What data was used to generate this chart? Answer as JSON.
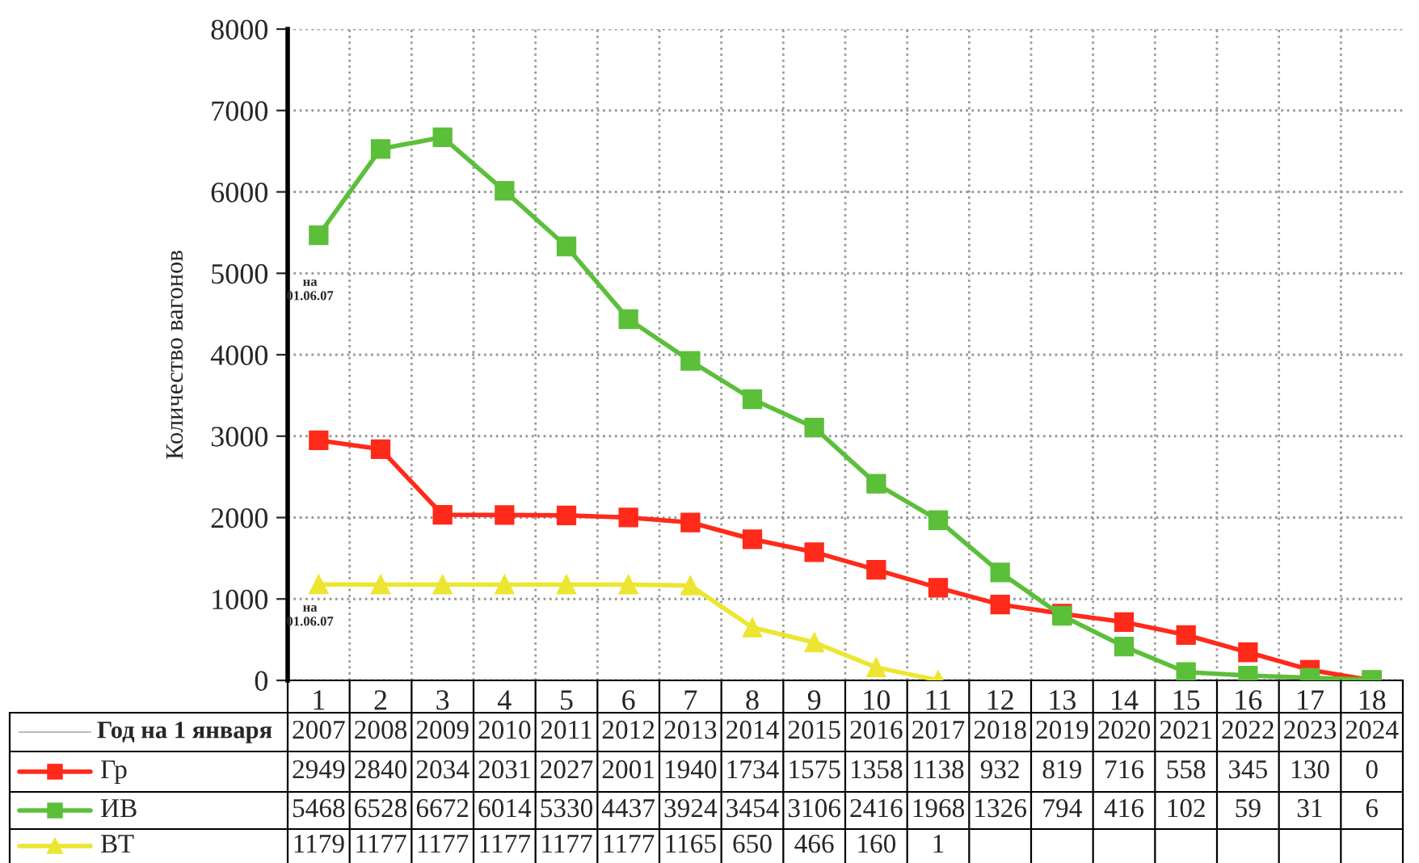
{
  "chart_data": {
    "type": "line",
    "ylabel": "Количество вагонов",
    "categories": [
      "1",
      "2",
      "3",
      "4",
      "5",
      "6",
      "7",
      "8",
      "9",
      "10",
      "11",
      "12",
      "13",
      "14",
      "15",
      "16",
      "17",
      "18"
    ],
    "series": [
      {
        "name": "Гр",
        "color": "#ff2a1a",
        "marker": "square",
        "values": [
          2949,
          2840,
          2034,
          2031,
          2027,
          2001,
          1940,
          1734,
          1575,
          1358,
          1138,
          932,
          819,
          716,
          558,
          345,
          130,
          0
        ]
      },
      {
        "name": "ИВ",
        "color": "#5cbf3a",
        "marker": "square",
        "values": [
          5468,
          6528,
          6672,
          6014,
          5330,
          4437,
          3924,
          3454,
          3106,
          2416,
          1968,
          1326,
          794,
          416,
          102,
          59,
          31,
          6
        ]
      },
      {
        "name": "ВТ",
        "color": "#ece632",
        "marker": "triangle",
        "values": [
          1179,
          1177,
          1177,
          1177,
          1177,
          1177,
          1165,
          650,
          466,
          160,
          1,
          null,
          null,
          null,
          null,
          null,
          null,
          null
        ]
      }
    ],
    "ylim": [
      0,
      8000
    ],
    "yticks": [
      0,
      1000,
      2000,
      3000,
      4000,
      5000,
      6000,
      7000,
      8000
    ],
    "grid": true,
    "legend": "bottom",
    "data_labels": true,
    "line_style": "solid",
    "annotations": [
      "на\n01.06.07",
      "на\n01.06.07",
      "Год на 1 января",
      "2007",
      "2008",
      "2009",
      "2010",
      "2011",
      "2012",
      "2013",
      "2014",
      "2015",
      "2016",
      "2017",
      "2018",
      "2019",
      "2020",
      "2021",
      "2022",
      "2023",
      "2024"
    ]
  }
}
